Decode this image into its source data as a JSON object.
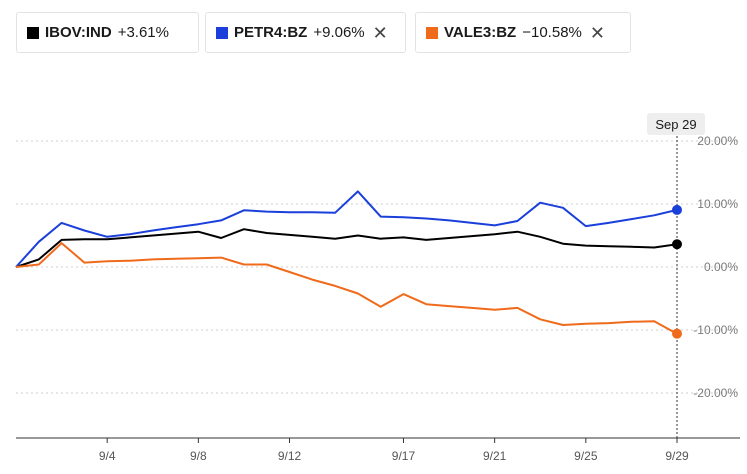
{
  "legend": [
    {
      "symbol": "IBOV:IND",
      "change": "+3.61%",
      "color": "#000000",
      "closable": false
    },
    {
      "symbol": "PETR4:BZ",
      "change": "+9.06%",
      "color": "#1a3fdb",
      "closable": true
    },
    {
      "symbol": "VALE3:BZ",
      "change": "−10.58%",
      "color": "#f06a1b",
      "closable": true
    }
  ],
  "close_icon": "✕",
  "date_badge": "Sep 29",
  "chart_data": {
    "type": "line",
    "x_ticks": [
      "9/4",
      "9/8",
      "9/12",
      "9/17",
      "9/21",
      "9/25",
      "9/29"
    ],
    "y_ticks": [
      "20.00%",
      "10.00%",
      "0.00%",
      "-10.00%",
      "-20.00%"
    ],
    "y_tick_values": [
      20,
      10,
      0,
      -10,
      -20
    ],
    "ylim": [
      -27,
      27
    ],
    "grid": true,
    "x": [
      "8/31",
      "9/1",
      "9/2",
      "9/3",
      "9/4",
      "9/5",
      "9/6",
      "9/7",
      "9/8",
      "9/9",
      "9/10",
      "9/11",
      "9/12",
      "9/13",
      "9/14",
      "9/15",
      "9/16",
      "9/17",
      "9/18",
      "9/19",
      "9/20",
      "9/21",
      "9/22",
      "9/23",
      "9/24",
      "9/25",
      "9/26",
      "9/27",
      "9/28",
      "9/29"
    ],
    "series": [
      {
        "name": "IBOV:IND",
        "color": "#000000",
        "values": [
          0,
          1.2,
          4.3,
          4.4,
          4.4,
          4.7,
          5.0,
          5.3,
          5.6,
          4.6,
          6.0,
          5.4,
          5.1,
          4.8,
          4.5,
          5.0,
          4.5,
          4.7,
          4.3,
          4.6,
          4.9,
          5.2,
          5.6,
          4.8,
          3.7,
          3.4,
          3.3,
          3.2,
          3.1,
          3.61
        ]
      },
      {
        "name": "PETR4:BZ",
        "color": "#1a3fdb",
        "values": [
          0,
          4.0,
          7.0,
          5.8,
          4.8,
          5.2,
          5.8,
          6.3,
          6.8,
          7.4,
          9.0,
          8.8,
          8.7,
          8.7,
          8.6,
          12.0,
          8.0,
          7.9,
          7.7,
          7.4,
          7.0,
          6.6,
          7.3,
          10.2,
          9.4,
          6.5,
          7.0,
          7.6,
          8.2,
          9.06
        ]
      },
      {
        "name": "VALE3:BZ",
        "color": "#f06a1b",
        "values": [
          0,
          0.4,
          3.8,
          0.7,
          0.9,
          1.0,
          1.2,
          1.3,
          1.4,
          1.5,
          0.4,
          0.4,
          -0.8,
          -2.0,
          -3.0,
          -4.2,
          -6.3,
          -4.3,
          -5.9,
          -6.2,
          -6.5,
          -6.8,
          -6.5,
          -8.3,
          -9.2,
          -9.0,
          -8.9,
          -8.7,
          -8.6,
          -10.58
        ]
      }
    ]
  }
}
